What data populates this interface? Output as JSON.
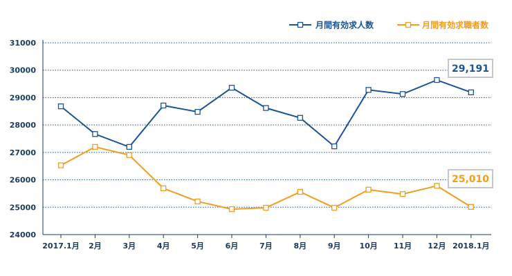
{
  "chart_data": {
    "type": "line",
    "categories": [
      "2017.1月",
      "2月",
      "3月",
      "4月",
      "5月",
      "6月",
      "7月",
      "8月",
      "9月",
      "10月",
      "11月",
      "12月",
      "2018.1月"
    ],
    "series": [
      {
        "name": "月間有効求人数",
        "color": "#1a5494",
        "values": [
          28680,
          27670,
          27200,
          28710,
          28480,
          29360,
          28620,
          28260,
          27220,
          29280,
          29130,
          29640,
          29191
        ]
      },
      {
        "name": "月間有効求職者数",
        "color": "#f39c1d",
        "values": [
          26530,
          27200,
          26900,
          25690,
          25210,
          24930,
          24980,
          25560,
          24980,
          25640,
          25480,
          25780,
          25010
        ]
      }
    ],
    "ylim": [
      24000,
      31000
    ],
    "yticks": [
      "24000",
      "25000",
      "26000",
      "27000",
      "28000",
      "29000",
      "30000",
      "31000"
    ],
    "grid": "horizontal-dotted",
    "legend_position": "top-right",
    "annotations": [
      {
        "series": 0,
        "text": "29,191"
      },
      {
        "series": 1,
        "text": "25,010"
      }
    ]
  }
}
